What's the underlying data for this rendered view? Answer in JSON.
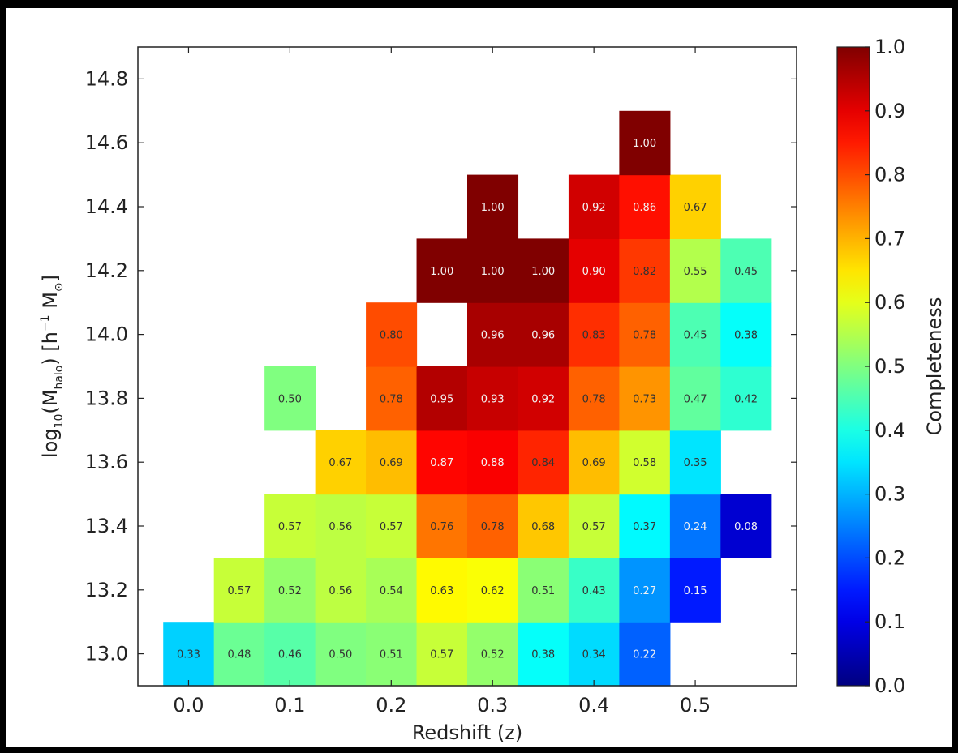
{
  "chart_data": {
    "type": "heatmap",
    "title": "",
    "xlabel": "Redshift (z)",
    "ylabel": "log10(M_halo) [h^-1 M_sun]",
    "xlim": [
      -0.05,
      0.6
    ],
    "ylim": [
      12.9,
      14.9
    ],
    "x_ticks": [
      "0.0",
      "0.1",
      "0.2",
      "0.3",
      "0.4",
      "0.5"
    ],
    "y_ticks": [
      "13.0",
      "13.2",
      "13.4",
      "13.6",
      "13.8",
      "14.0",
      "14.2",
      "14.4",
      "14.6",
      "14.8"
    ],
    "x_tick_values": [
      0.0,
      0.1,
      0.2,
      0.3,
      0.4,
      0.5
    ],
    "y_tick_values": [
      13.0,
      13.2,
      13.4,
      13.6,
      13.8,
      14.0,
      14.2,
      14.4,
      14.6,
      14.8
    ],
    "x_bin_centers": [
      0.0,
      0.05,
      0.1,
      0.15,
      0.2,
      0.25,
      0.3,
      0.35,
      0.4,
      0.45,
      0.5,
      0.55
    ],
    "x_bin_width": 0.05,
    "y_bin_centers": [
      13.0,
      13.2,
      13.4,
      13.6,
      13.8,
      14.0,
      14.2,
      14.4,
      14.6
    ],
    "y_bin_height": 0.2,
    "grid": false,
    "colormap": "jet",
    "colorbar": {
      "label": "Completeness",
      "range": [
        0.0,
        1.0
      ],
      "ticks": [
        "0.0",
        "0.1",
        "0.2",
        "0.3",
        "0.4",
        "0.5",
        "0.6",
        "0.7",
        "0.8",
        "0.9",
        "1.0"
      ],
      "tick_values": [
        0.0,
        0.1,
        0.2,
        0.3,
        0.4,
        0.5,
        0.6,
        0.7,
        0.8,
        0.9,
        1.0
      ]
    },
    "cells": [
      {
        "x": 0.0,
        "y": 13.0,
        "label": "0.33"
      },
      {
        "x": 0.05,
        "y": 13.0,
        "label": "0.48"
      },
      {
        "x": 0.1,
        "y": 13.0,
        "label": "0.46"
      },
      {
        "x": 0.15,
        "y": 13.0,
        "label": "0.50"
      },
      {
        "x": 0.2,
        "y": 13.0,
        "label": "0.51"
      },
      {
        "x": 0.25,
        "y": 13.0,
        "label": "0.57"
      },
      {
        "x": 0.3,
        "y": 13.0,
        "label": "0.52"
      },
      {
        "x": 0.35,
        "y": 13.0,
        "label": "0.38"
      },
      {
        "x": 0.4,
        "y": 13.0,
        "label": "0.34"
      },
      {
        "x": 0.45,
        "y": 13.0,
        "label": "0.22"
      },
      {
        "x": 0.05,
        "y": 13.2,
        "label": "0.57"
      },
      {
        "x": 0.1,
        "y": 13.2,
        "label": "0.52"
      },
      {
        "x": 0.15,
        "y": 13.2,
        "label": "0.56"
      },
      {
        "x": 0.2,
        "y": 13.2,
        "label": "0.54"
      },
      {
        "x": 0.25,
        "y": 13.2,
        "label": "0.63"
      },
      {
        "x": 0.3,
        "y": 13.2,
        "label": "0.62"
      },
      {
        "x": 0.35,
        "y": 13.2,
        "label": "0.51"
      },
      {
        "x": 0.4,
        "y": 13.2,
        "label": "0.43"
      },
      {
        "x": 0.45,
        "y": 13.2,
        "label": "0.27"
      },
      {
        "x": 0.5,
        "y": 13.2,
        "label": "0.15"
      },
      {
        "x": 0.1,
        "y": 13.4,
        "label": "0.57"
      },
      {
        "x": 0.15,
        "y": 13.4,
        "label": "0.56"
      },
      {
        "x": 0.2,
        "y": 13.4,
        "label": "0.57"
      },
      {
        "x": 0.25,
        "y": 13.4,
        "label": "0.76"
      },
      {
        "x": 0.3,
        "y": 13.4,
        "label": "0.78"
      },
      {
        "x": 0.35,
        "y": 13.4,
        "label": "0.68"
      },
      {
        "x": 0.4,
        "y": 13.4,
        "label": "0.57"
      },
      {
        "x": 0.45,
        "y": 13.4,
        "label": "0.37"
      },
      {
        "x": 0.5,
        "y": 13.4,
        "label": "0.24"
      },
      {
        "x": 0.55,
        "y": 13.4,
        "label": "0.08"
      },
      {
        "x": 0.15,
        "y": 13.6,
        "label": "0.67"
      },
      {
        "x": 0.2,
        "y": 13.6,
        "label": "0.69"
      },
      {
        "x": 0.25,
        "y": 13.6,
        "label": "0.87"
      },
      {
        "x": 0.3,
        "y": 13.6,
        "label": "0.88"
      },
      {
        "x": 0.35,
        "y": 13.6,
        "label": "0.84"
      },
      {
        "x": 0.4,
        "y": 13.6,
        "label": "0.69"
      },
      {
        "x": 0.45,
        "y": 13.6,
        "label": "0.58"
      },
      {
        "x": 0.5,
        "y": 13.6,
        "label": "0.35"
      },
      {
        "x": 0.1,
        "y": 13.8,
        "label": "0.50"
      },
      {
        "x": 0.2,
        "y": 13.8,
        "label": "0.78"
      },
      {
        "x": 0.25,
        "y": 13.8,
        "label": "0.95"
      },
      {
        "x": 0.3,
        "y": 13.8,
        "label": "0.93"
      },
      {
        "x": 0.35,
        "y": 13.8,
        "label": "0.92"
      },
      {
        "x": 0.4,
        "y": 13.8,
        "label": "0.78"
      },
      {
        "x": 0.45,
        "y": 13.8,
        "label": "0.73"
      },
      {
        "x": 0.5,
        "y": 13.8,
        "label": "0.47"
      },
      {
        "x": 0.55,
        "y": 13.8,
        "label": "0.42"
      },
      {
        "x": 0.2,
        "y": 14.0,
        "label": "0.80"
      },
      {
        "x": 0.3,
        "y": 14.0,
        "label": "0.96"
      },
      {
        "x": 0.35,
        "y": 14.0,
        "label": "0.96"
      },
      {
        "x": 0.4,
        "y": 14.0,
        "label": "0.83"
      },
      {
        "x": 0.45,
        "y": 14.0,
        "label": "0.78"
      },
      {
        "x": 0.5,
        "y": 14.0,
        "label": "0.45"
      },
      {
        "x": 0.55,
        "y": 14.0,
        "label": "0.38"
      },
      {
        "x": 0.25,
        "y": 14.2,
        "label": "1.00"
      },
      {
        "x": 0.3,
        "y": 14.2,
        "label": "1.00"
      },
      {
        "x": 0.35,
        "y": 14.2,
        "label": "1.00"
      },
      {
        "x": 0.4,
        "y": 14.2,
        "label": "0.90"
      },
      {
        "x": 0.45,
        "y": 14.2,
        "label": "0.82"
      },
      {
        "x": 0.5,
        "y": 14.2,
        "label": "0.55"
      },
      {
        "x": 0.55,
        "y": 14.2,
        "label": "0.45"
      },
      {
        "x": 0.3,
        "y": 14.4,
        "label": "1.00"
      },
      {
        "x": 0.4,
        "y": 14.4,
        "label": "0.92"
      },
      {
        "x": 0.45,
        "y": 14.4,
        "label": "0.86"
      },
      {
        "x": 0.5,
        "y": 14.4,
        "label": "0.67"
      },
      {
        "x": 0.45,
        "y": 14.6,
        "label": "1.00"
      }
    ]
  }
}
